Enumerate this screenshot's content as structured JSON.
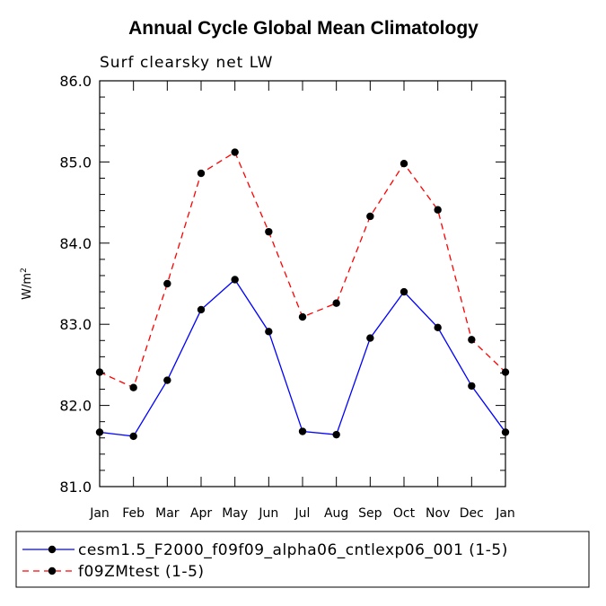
{
  "chart_data": {
    "type": "line",
    "title": "Annual Cycle Global Mean Climatology",
    "subtitle": "Surf clearsky net LW",
    "xlabel": "",
    "ylabel": "W/m",
    "ylabel_superscript": "2",
    "ylim": [
      81.0,
      86.0
    ],
    "yticks": [
      "81.0",
      "82.0",
      "83.0",
      "84.0",
      "85.0",
      "86.0"
    ],
    "categories": [
      "Jan",
      "Feb",
      "Mar",
      "Apr",
      "May",
      "Jun",
      "Jul",
      "Aug",
      "Sep",
      "Oct",
      "Nov",
      "Dec",
      "Jan"
    ],
    "grid": false,
    "legend_position": "bottom",
    "series": [
      {
        "name": "cesm1.5_F2000_f09f09_alpha06_cntlexp06_001 (1-5)",
        "color": "#0000ff",
        "dash": "solid",
        "values": [
          81.67,
          81.62,
          82.31,
          83.18,
          83.55,
          82.91,
          81.68,
          81.64,
          82.83,
          83.4,
          82.96,
          82.24,
          81.67
        ]
      },
      {
        "name": "f09ZMtest (1-5)",
        "color": "#ff0000",
        "dash": "dashed",
        "values": [
          82.41,
          82.22,
          83.5,
          84.86,
          85.12,
          84.14,
          83.09,
          83.26,
          84.33,
          84.98,
          84.41,
          82.81,
          82.41
        ]
      }
    ]
  }
}
